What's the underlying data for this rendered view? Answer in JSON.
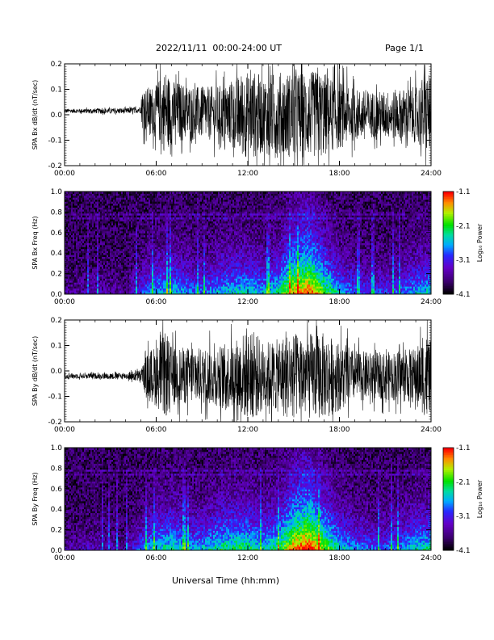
{
  "header": {
    "title": "2022/11/11  00:00-24:00 UT",
    "page": "Page 1/1"
  },
  "xlabel": "Universal Time (hh:mm)",
  "chart_data": [
    {
      "type": "line",
      "ylabel": "SPA Bx dB/dt (nT/sec)",
      "xlim": [
        0,
        24
      ],
      "ylim": [
        -0.2,
        0.2
      ],
      "x_ticks": [
        "00:00",
        "06:00",
        "12:00",
        "18:00",
        "24:00"
      ],
      "y_ticks": [
        "-0.2",
        "-0.1",
        "0.0",
        "0.1",
        "0.2"
      ],
      "series": [
        {
          "x": [
            0,
            1,
            2,
            3,
            4,
            5,
            5.1,
            6,
            6.6,
            7,
            8,
            9,
            10,
            11,
            11.6,
            12,
            12.5,
            13,
            14,
            15,
            16,
            17,
            17.5,
            18,
            19,
            20,
            21,
            22,
            23,
            23.7,
            24
          ],
          "envelope": [
            0.01,
            0.01,
            0.012,
            0.012,
            0.013,
            0.015,
            0.1,
            0.12,
            0.2,
            0.15,
            0.13,
            0.12,
            0.13,
            0.15,
            0.2,
            0.2,
            0.2,
            0.18,
            0.2,
            0.2,
            0.2,
            0.2,
            0.17,
            0.16,
            0.12,
            0.11,
            0.11,
            0.12,
            0.13,
            0.2,
            0.16
          ],
          "offset": [
            0.015,
            0.015,
            0.015,
            0.015,
            0.015,
            0.02,
            0.02,
            0.015,
            0.015,
            0.01,
            0.01,
            0.005,
            0.005,
            0.0,
            0.0,
            0.0,
            0.0,
            0.0,
            0.0,
            0.0,
            0.0,
            0.0,
            0.0,
            0.0,
            0.0,
            0.0,
            0.0,
            0.0,
            0.0,
            0.0,
            0.0
          ]
        }
      ]
    },
    {
      "type": "heatmap",
      "ylabel": "SPA Bx Freq (Hz)",
      "xlim": [
        0,
        24
      ],
      "ylim": [
        0,
        1.0
      ],
      "x_ticks": [
        "00:00",
        "06:00",
        "12:00",
        "18:00",
        "24:00"
      ],
      "y_ticks": [
        "0.0",
        "0.2",
        "0.4",
        "0.6",
        "0.8",
        "1.0"
      ],
      "colorbar": {
        "label": "Log₁₀ Power",
        "range": [
          -4.1,
          -1.1
        ],
        "ticks": [
          "-1.1",
          "-2.1",
          "-3.1",
          "-4.1"
        ]
      },
      "activity_x": [
        0,
        1,
        2,
        3,
        4,
        5,
        6,
        7,
        8,
        9,
        10,
        11,
        12,
        13,
        14,
        15,
        16,
        17,
        18,
        19,
        20,
        21,
        22,
        23,
        24
      ],
      "activity": [
        0.1,
        0.12,
        0.15,
        0.12,
        0.1,
        0.3,
        0.45,
        0.5,
        0.4,
        0.35,
        0.45,
        0.5,
        0.5,
        0.45,
        0.55,
        0.85,
        0.95,
        0.7,
        0.45,
        0.35,
        0.3,
        0.3,
        0.35,
        0.45,
        0.5
      ]
    },
    {
      "type": "line",
      "ylabel": "SPA By dB/dt (nT/sec)",
      "xlim": [
        0,
        24
      ],
      "ylim": [
        -0.2,
        0.2
      ],
      "x_ticks": [
        "00:00",
        "06:00",
        "12:00",
        "18:00",
        "24:00"
      ],
      "y_ticks": [
        "-0.2",
        "-0.1",
        "0.0",
        "0.1",
        "0.2"
      ],
      "series": [
        {
          "x": [
            0,
            1,
            2,
            3,
            4,
            5,
            5.5,
            6,
            6.6,
            7,
            8,
            9,
            10,
            11,
            11.6,
            12,
            12.5,
            13,
            14,
            14.5,
            15,
            16,
            17,
            17.5,
            18,
            19,
            20,
            21,
            22,
            23,
            23.7,
            24
          ],
          "envelope": [
            0.012,
            0.012,
            0.013,
            0.014,
            0.015,
            0.03,
            0.12,
            0.14,
            0.2,
            0.14,
            0.13,
            0.13,
            0.14,
            0.16,
            0.2,
            0.2,
            0.2,
            0.16,
            0.17,
            0.2,
            0.2,
            0.2,
            0.2,
            0.18,
            0.16,
            0.12,
            0.11,
            0.11,
            0.12,
            0.13,
            0.2,
            0.16
          ],
          "offset": [
            -0.02,
            -0.02,
            -0.02,
            -0.02,
            -0.02,
            -0.02,
            -0.02,
            -0.02,
            -0.02,
            -0.02,
            -0.02,
            -0.02,
            -0.02,
            -0.02,
            -0.02,
            -0.02,
            -0.02,
            -0.02,
            -0.02,
            -0.02,
            -0.02,
            -0.02,
            -0.02,
            -0.02,
            -0.02,
            -0.02,
            -0.02,
            -0.02,
            -0.02,
            -0.02,
            -0.02,
            -0.02
          ]
        }
      ]
    },
    {
      "type": "heatmap",
      "ylabel": "SPA By Freq (Hz)",
      "xlim": [
        0,
        24
      ],
      "ylim": [
        0,
        1.0
      ],
      "x_ticks": [
        "00:00",
        "06:00",
        "12:00",
        "18:00",
        "24:00"
      ],
      "y_ticks": [
        "0.0",
        "0.2",
        "0.4",
        "0.6",
        "0.8",
        "1.0"
      ],
      "colorbar": {
        "label": "Log₁₀ Power",
        "range": [
          -4.1,
          -1.1
        ],
        "ticks": [
          "-1.1",
          "-2.1",
          "-3.1",
          "-4.1"
        ]
      },
      "activity_x": [
        0,
        1,
        2,
        3,
        4,
        5,
        6,
        7,
        8,
        9,
        10,
        11,
        12,
        13,
        14,
        15,
        16,
        17,
        18,
        19,
        20,
        21,
        22,
        23,
        24
      ],
      "activity": [
        0.12,
        0.15,
        0.18,
        0.15,
        0.12,
        0.35,
        0.5,
        0.55,
        0.45,
        0.45,
        0.55,
        0.6,
        0.6,
        0.5,
        0.6,
        0.9,
        1.0,
        0.75,
        0.5,
        0.4,
        0.35,
        0.35,
        0.4,
        0.5,
        0.55
      ]
    }
  ]
}
